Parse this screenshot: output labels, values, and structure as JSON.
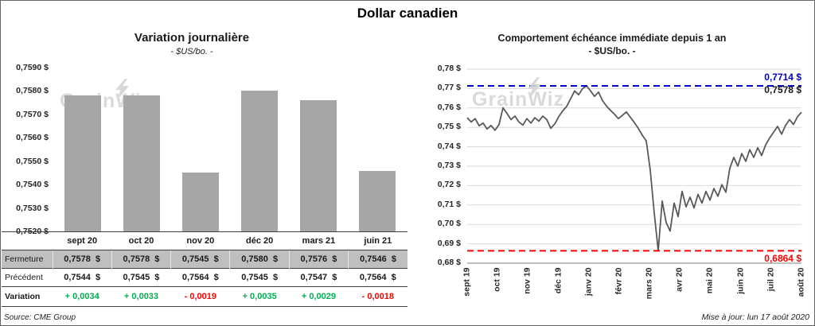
{
  "page": {
    "title": "Dollar canadien",
    "source": "Source: CME Group",
    "updated": "Mise à jour: lun 17 août 2020",
    "watermark": "GrainWiz"
  },
  "colors": {
    "bar": "#a6a6a6",
    "line": "#595959",
    "grid": "#d9d9d9",
    "axis": "#808080",
    "high": "#0000cc",
    "low": "#ff0000",
    "positive": "#00b050",
    "negative": "#ff0000",
    "table_header_bg": "#bfbfbf"
  },
  "chart_data": [
    {
      "type": "bar",
      "title": "Variation  journalière",
      "subtitle": "- $US/bo. -",
      "categories": [
        "sept 20",
        "oct 20",
        "nov 20",
        "déc 20",
        "mars 21",
        "juin 21"
      ],
      "values": [
        0.7578,
        0.7578,
        0.7545,
        0.758,
        0.7576,
        0.7546
      ],
      "ylim": [
        0.752,
        0.759
      ],
      "ytick_labels": [
        "0,7520 $",
        "0,7530 $",
        "0,7540 $",
        "0,7550 $",
        "0,7560 $",
        "0,7570 $",
        "0,7580 $",
        "0,7590 $"
      ],
      "grid": false,
      "table": {
        "row_labels": [
          "Fermeture",
          "Précédent",
          "Variation"
        ],
        "fermeture": [
          "0,7578  $",
          "0,7578  $",
          "0,7545  $",
          "0,7580  $",
          "0,7576  $",
          "0,7546  $"
        ],
        "precedent": [
          "0,7544  $",
          "0,7545  $",
          "0,7564  $",
          "0,7545  $",
          "0,7547  $",
          "0,7564  $"
        ],
        "variation": [
          "+ 0,0034",
          "+ 0,0033",
          "- 0,0019",
          "+ 0,0035",
          "+ 0,0029",
          "- 0,0018"
        ],
        "variation_sign": [
          1,
          1,
          -1,
          1,
          1,
          -1
        ]
      }
    },
    {
      "type": "line",
      "title": "Comportement échéance immédiate depuis 1 an",
      "subtitle": "- $US/bo. -",
      "x_labels": [
        "sept 19",
        "oct 19",
        "nov 19",
        "déc 19",
        "janv 20",
        "févr 20",
        "mars 20",
        "avr 20",
        "mai 20",
        "juin 20",
        "juil 20",
        "août 20"
      ],
      "ylim": [
        0.68,
        0.78
      ],
      "ytick_labels": [
        "0,68 $",
        "0,69 $",
        "0,70 $",
        "0,71 $",
        "0,72 $",
        "0,73 $",
        "0,74 $",
        "0,75 $",
        "0,76 $",
        "0,77 $",
        "0,78 $"
      ],
      "grid": true,
      "high": 0.7714,
      "low": 0.6864,
      "current": 0.7578,
      "high_label": "0,7714 $",
      "current_label": "0,7578 $",
      "low_label": "0,6864 $",
      "values": [
        0.755,
        0.7528,
        0.7545,
        0.7508,
        0.7522,
        0.7492,
        0.751,
        0.7485,
        0.7515,
        0.7601,
        0.7572,
        0.754,
        0.7558,
        0.7528,
        0.7512,
        0.7545,
        0.7522,
        0.755,
        0.7532,
        0.7558,
        0.754,
        0.7495,
        0.7518,
        0.7555,
        0.7585,
        0.7608,
        0.7648,
        0.7688,
        0.7668,
        0.77,
        0.7714,
        0.7688,
        0.766,
        0.7682,
        0.7638,
        0.761,
        0.7588,
        0.7568,
        0.7545,
        0.7562,
        0.758,
        0.7552,
        0.7525,
        0.7495,
        0.746,
        0.743,
        0.728,
        0.706,
        0.6864,
        0.712,
        0.701,
        0.6965,
        0.711,
        0.704,
        0.717,
        0.709,
        0.714,
        0.7085,
        0.7155,
        0.711,
        0.717,
        0.7125,
        0.7185,
        0.7145,
        0.7205,
        0.7165,
        0.729,
        0.7345,
        0.73,
        0.7365,
        0.7325,
        0.7385,
        0.7345,
        0.7395,
        0.7355,
        0.741,
        0.7445,
        0.7475,
        0.7505,
        0.7465,
        0.751,
        0.754,
        0.7515,
        0.7555,
        0.7578
      ]
    }
  ]
}
